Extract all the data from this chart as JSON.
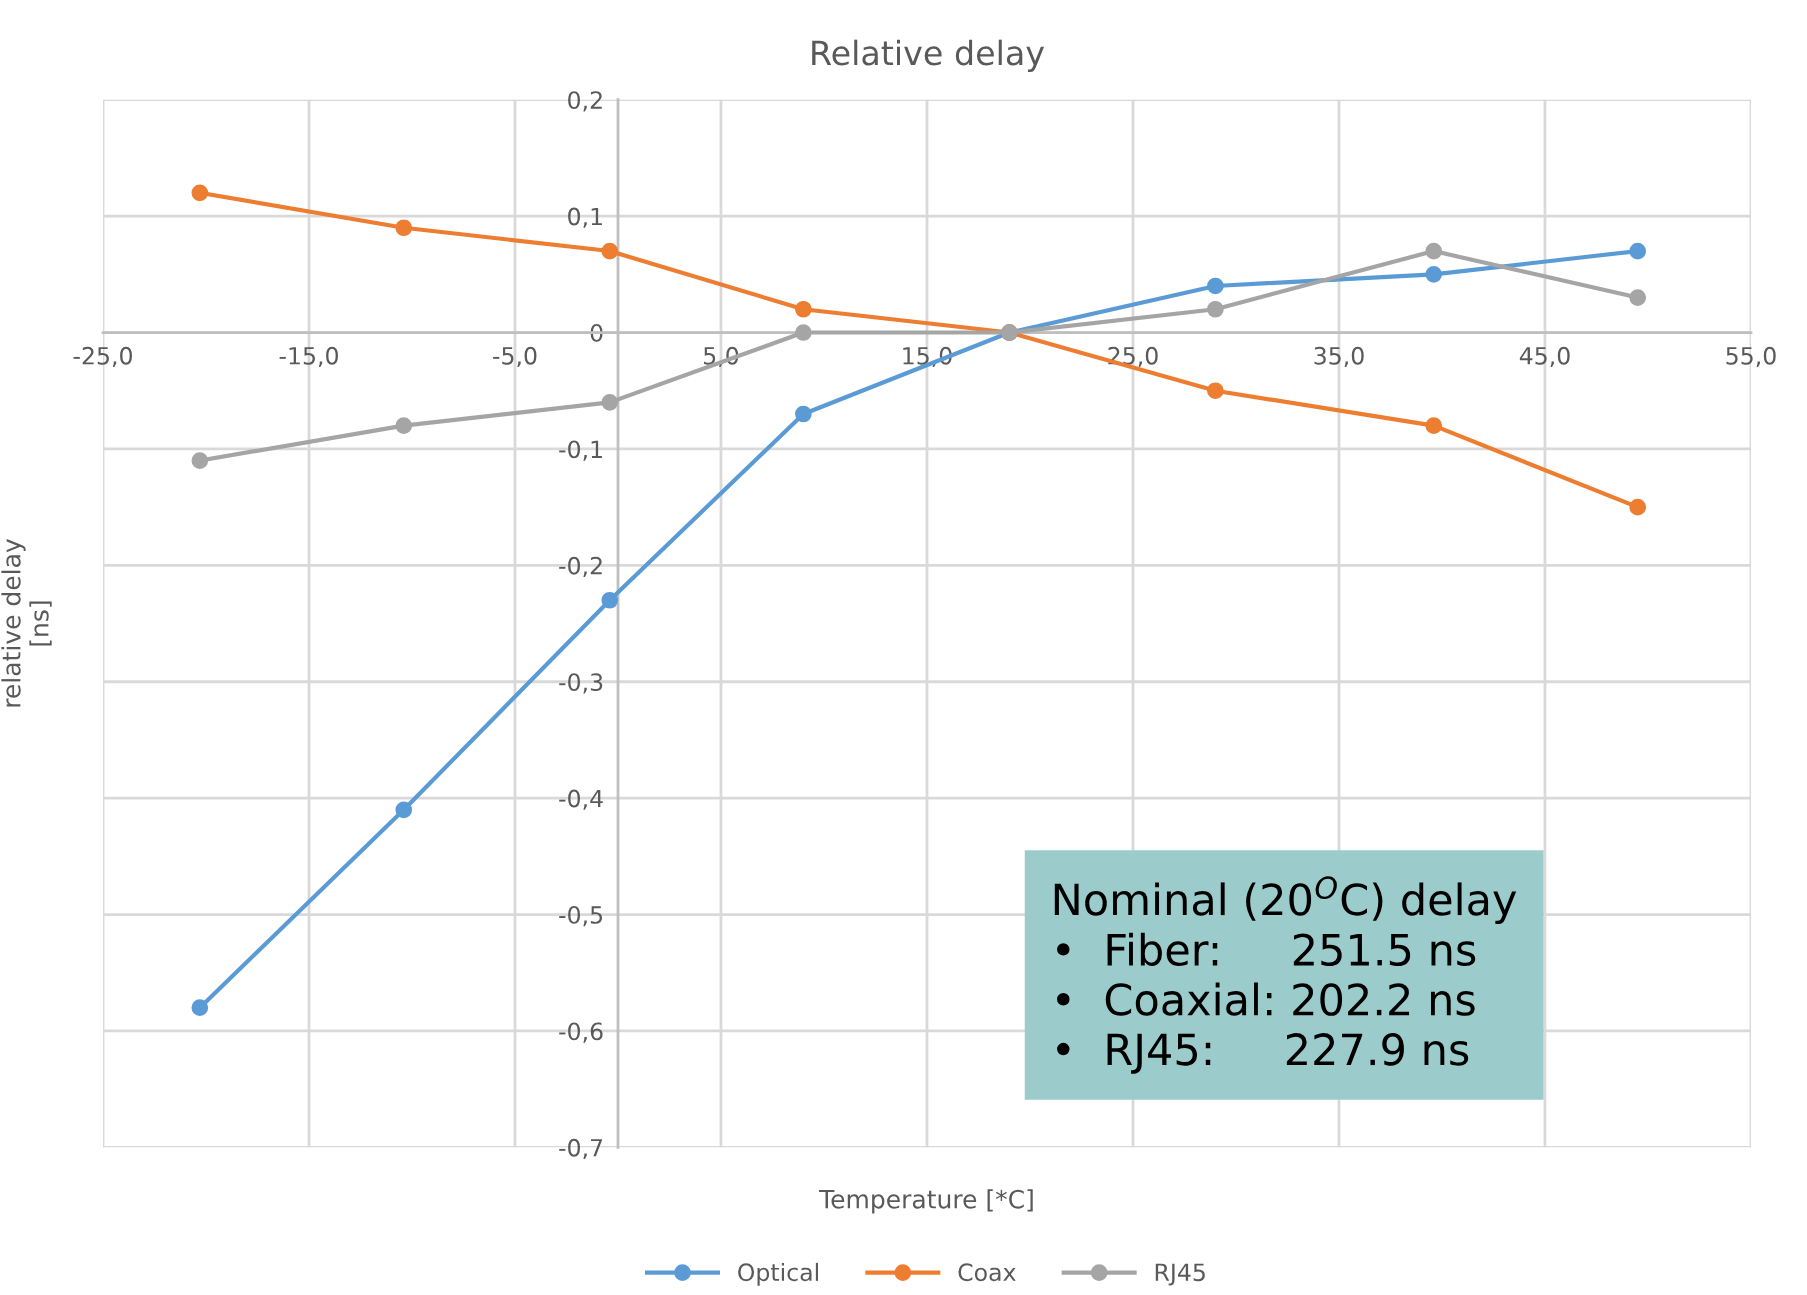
{
  "chart_data": {
    "type": "line",
    "title": "Relative delay",
    "xlabel": "Temperature [*C]",
    "ylabel": "relative delay\n[ns]",
    "x": [
      -20.3,
      -10.4,
      -0.4,
      9,
      19,
      29,
      39.6,
      49.5
    ],
    "series": [
      {
        "name": "Optical",
        "color": "#5b9bd5",
        "values": [
          -0.58,
          -0.41,
          -0.23,
          -0.07,
          0,
          0.04,
          0.05,
          0.07
        ]
      },
      {
        "name": "Coax",
        "color": "#ed7d31",
        "values": [
          0.12,
          0.09,
          0.07,
          0.02,
          0,
          -0.05,
          -0.08,
          -0.15
        ]
      },
      {
        "name": "RJ45",
        "color": "#a5a5a5",
        "values": [
          -0.11,
          -0.08,
          -0.06,
          0,
          0,
          0.02,
          0.07,
          0.03
        ]
      }
    ],
    "xlim": [
      -25,
      55
    ],
    "xticks": [
      {
        "value": -25,
        "label": "-25,0"
      },
      {
        "value": -15,
        "label": "-15,0"
      },
      {
        "value": -5,
        "label": "-5,0"
      },
      {
        "value": 5,
        "label": "5,0"
      },
      {
        "value": 15,
        "label": "15,0"
      },
      {
        "value": 25,
        "label": "25,0"
      },
      {
        "value": 35,
        "label": "35,0"
      },
      {
        "value": 45,
        "label": "45,0"
      },
      {
        "value": 55,
        "label": "55,0"
      }
    ],
    "ylim": [
      -0.7,
      0.2
    ],
    "yticks": [
      {
        "value": 0.2,
        "label": "0,2"
      },
      {
        "value": 0.1,
        "label": "0,1"
      },
      0,
      {
        "value": -0.1,
        "label": "-0,1"
      },
      {
        "value": -0.2,
        "label": "-0,2"
      },
      {
        "value": -0.3,
        "label": "-0,3"
      },
      {
        "value": -0.4,
        "label": "-0,4"
      },
      {
        "value": -0.5,
        "label": "-0,5"
      },
      {
        "value": -0.6,
        "label": "-0,6"
      },
      {
        "value": -0.7,
        "label": "-0,7"
      }
    ],
    "annotations": [
      "Nominal (20$^{O}$C) delay\n•  Fiber:     251.5 ns\n•  Coaxial: 202.2 ns\n•  RJ45:     227.9 ns"
    ],
    "grid": true,
    "legend": "bottom",
    "marker": "circle",
    "line_style": "solid"
  }
}
